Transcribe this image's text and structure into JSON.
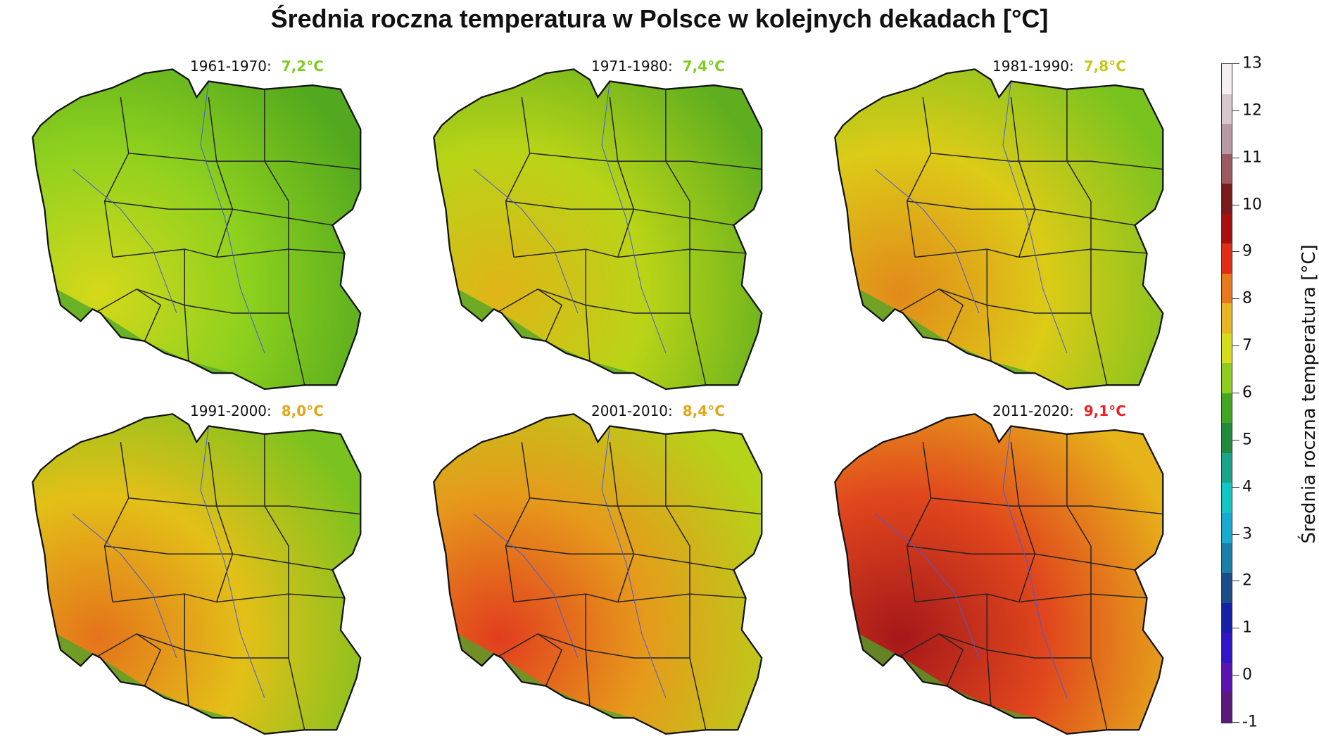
{
  "title": "Średnia roczna temperatura w Polsce w kolejnych dekadach [°C]",
  "panels": [
    {
      "period": "1961-1970:",
      "value": "7,2°C",
      "value_color": "#7fcc1f",
      "base_color": "#8fd11e",
      "high_color": "#d6d81a",
      "low_color": "#52a81e"
    },
    {
      "period": "1971-1980:",
      "value": "7,4°C",
      "value_color": "#7fcc1f",
      "base_color": "#b9d417",
      "high_color": "#e0b417",
      "low_color": "#5fae1f"
    },
    {
      "period": "1981-1990:",
      "value": "7,8°C",
      "value_color": "#c8c81a",
      "base_color": "#dccb17",
      "high_color": "#e28a1a",
      "low_color": "#79c31f"
    },
    {
      "period": "1991-2000:",
      "value": "8,0°C",
      "value_color": "#e1a716",
      "base_color": "#e3c018",
      "high_color": "#e4731b",
      "low_color": "#7ac21f"
    },
    {
      "period": "2001-2010:",
      "value": "8,4°C",
      "value_color": "#e1a716",
      "base_color": "#e69a1b",
      "high_color": "#e23d1e",
      "low_color": "#b5d319"
    },
    {
      "period": "2011-2020:",
      "value": "9,1°C",
      "value_color": "#ee2020",
      "base_color": "#e1471d",
      "high_color": "#a5181a",
      "low_color": "#e6b41a"
    }
  ],
  "legend": {
    "title": "Średnia roczna temperatura [°C]",
    "ticks": [
      "13",
      "12",
      "11",
      "10",
      "9",
      "8",
      "7",
      "6",
      "5",
      "4",
      "3",
      "2",
      "1",
      "0",
      "-1"
    ],
    "colors": [
      "#f4f0f2",
      "#d8c7cc",
      "#b89aa4",
      "#9a5a60",
      "#7a1a1c",
      "#a80f0f",
      "#e02d18",
      "#e8781c",
      "#e6b624",
      "#d7dc1c",
      "#8fcc1f",
      "#44a522",
      "#1e8a3a",
      "#1aa48a",
      "#13c6c4",
      "#18aad0",
      "#1a7ea6",
      "#1a4d8a",
      "#1520a6",
      "#3315c8",
      "#5a13b0",
      "#5b1a7a"
    ]
  }
}
